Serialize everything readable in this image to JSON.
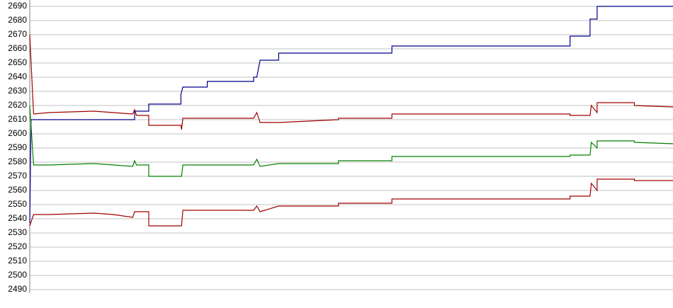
{
  "chart_data": {
    "type": "line",
    "xlim": [
      0,
      100
    ],
    "ylim": [
      2490,
      2690
    ],
    "yticks": [
      2490,
      2500,
      2510,
      2520,
      2530,
      2540,
      2550,
      2560,
      2570,
      2580,
      2590,
      2600,
      2610,
      2620,
      2630,
      2640,
      2650,
      2660,
      2670,
      2680,
      2690
    ],
    "grid": true,
    "series": [
      {
        "color": "#00008b",
        "x": [
          0,
          0.2,
          16.3,
          16.3,
          18.5,
          18.5,
          23.5,
          23.5,
          23.8,
          27.6,
          27.6,
          34.8,
          34.8,
          35.3,
          35.8,
          38.7,
          38.7,
          56.3,
          56.3,
          84,
          84,
          87.1,
          87.1,
          88.2,
          88.2,
          100
        ],
        "values": [
          2537,
          2610,
          2610,
          2616,
          2616,
          2621,
          2621,
          2628,
          2633,
          2633,
          2637,
          2637,
          2640,
          2640,
          2652,
          2652,
          2657,
          2657,
          2662,
          2662,
          2669,
          2669,
          2681,
          2681,
          2690,
          2690
        ]
      },
      {
        "color": "#a00000",
        "x": [
          0,
          0.6,
          3,
          10,
          13,
          16,
          16.3,
          16.6,
          18.5,
          18.5,
          23.5,
          23.6,
          23.8,
          34.8,
          35.3,
          35.8,
          38.7,
          48,
          48,
          56.3,
          56.3,
          84,
          84,
          87.1,
          87.3,
          88.2,
          88.2,
          94,
          94,
          100
        ],
        "values": [
          2670,
          2614,
          2615,
          2616,
          2615,
          2614,
          2617,
          2613,
          2613,
          2606,
          2606,
          2603,
          2611,
          2611,
          2615,
          2608,
          2608,
          2610,
          2611,
          2611,
          2614,
          2614,
          2613,
          2613,
          2620,
          2615,
          2622,
          2622,
          2620,
          2619
        ]
      },
      {
        "color": "#008000",
        "x": [
          0,
          0.6,
          3,
          10,
          13,
          16,
          16.3,
          16.6,
          18.5,
          18.5,
          23.5,
          23.6,
          23.8,
          34.8,
          35.3,
          35.8,
          38.7,
          48,
          48,
          56.3,
          56.3,
          84,
          84,
          87.1,
          87.3,
          88.2,
          88.2,
          94,
          94,
          100
        ],
        "values": [
          2620,
          2578,
          2578,
          2579,
          2578,
          2577,
          2581,
          2578,
          2578,
          2570,
          2570,
          2570,
          2578,
          2578,
          2582,
          2577,
          2579,
          2579,
          2581,
          2581,
          2584,
          2584,
          2585,
          2585,
          2594,
          2590,
          2595,
          2595,
          2594,
          2593
        ]
      },
      {
        "color": "#a00000",
        "x": [
          0,
          0.6,
          3,
          10,
          13,
          16,
          16.3,
          16.6,
          18.5,
          18.5,
          23.5,
          23.6,
          23.8,
          34.8,
          35.3,
          35.8,
          38.7,
          48,
          48,
          56.3,
          56.3,
          84,
          84,
          87.1,
          87.3,
          88.2,
          88.2,
          94,
          94,
          100
        ],
        "values": [
          2535,
          2543,
          2543,
          2544,
          2543,
          2541,
          2545,
          2545,
          2545,
          2535,
          2535,
          2535,
          2546,
          2546,
          2549,
          2545,
          2549,
          2549,
          2551,
          2551,
          2554,
          2554,
          2556,
          2556,
          2565,
          2560,
          2568,
          2568,
          2567,
          2567
        ]
      }
    ]
  }
}
